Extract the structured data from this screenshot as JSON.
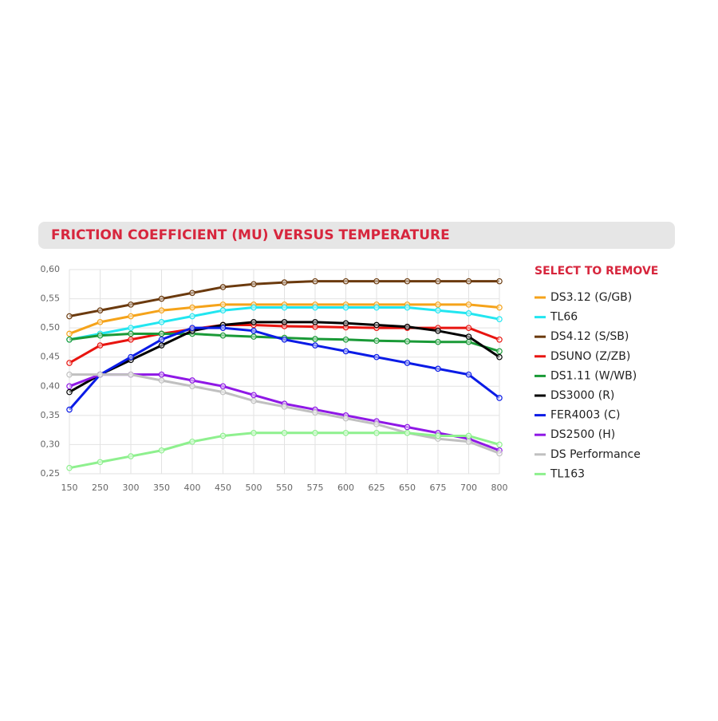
{
  "chart_data": {
    "type": "line",
    "title": "FRICTION COEFFICIENT (MU) VERSUS TEMPERATURE",
    "legend_title": "SELECT TO REMOVE",
    "legend": "right",
    "grid": true,
    "categories": [
      "150",
      "250",
      "300",
      "350",
      "400",
      "450",
      "500",
      "550",
      "575",
      "600",
      "625",
      "650",
      "675",
      "700",
      "800"
    ],
    "ylim": [
      0.25,
      0.6
    ],
    "yticks": [
      {
        "value": 0.25,
        "label": "0,25"
      },
      {
        "value": 0.3,
        "label": "0,30"
      },
      {
        "value": 0.35,
        "label": "0,35"
      },
      {
        "value": 0.4,
        "label": "0,40"
      },
      {
        "value": 0.45,
        "label": "0,45"
      },
      {
        "value": 0.5,
        "label": "0,50"
      },
      {
        "value": 0.55,
        "label": "0,55"
      },
      {
        "value": 0.6,
        "label": "0,60"
      }
    ],
    "series": [
      {
        "name": "DS3.12 (G/GB)",
        "color": "#f5a31a",
        "values": [
          0.49,
          0.51,
          0.52,
          0.53,
          0.535,
          0.54,
          0.54,
          0.54,
          0.54,
          0.54,
          0.54,
          0.54,
          0.54,
          0.54,
          0.535
        ]
      },
      {
        "name": "TL66",
        "color": "#22e6f0",
        "values": [
          0.48,
          0.49,
          0.5,
          0.51,
          0.52,
          0.53,
          0.535,
          0.535,
          0.535,
          0.535,
          0.535,
          0.535,
          0.53,
          0.525,
          0.515
        ]
      },
      {
        "name": "DS4.12 (S/SB)",
        "color": "#6b3a0e",
        "values": [
          0.52,
          0.53,
          0.54,
          0.55,
          0.56,
          0.57,
          0.575,
          0.578,
          0.58,
          0.58,
          0.58,
          0.58,
          0.58,
          0.58,
          0.58
        ]
      },
      {
        "name": "DSUNO (Z/ZB)",
        "color": "#e8140f",
        "values": [
          0.44,
          0.47,
          0.48,
          0.49,
          0.498,
          0.505,
          0.505,
          0.503,
          0.502,
          0.501,
          0.5,
          0.5,
          0.5,
          0.5,
          0.48
        ]
      },
      {
        "name": "DS1.11 (W/WB)",
        "color": "#1a9a37",
        "values": [
          0.48,
          0.487,
          0.49,
          0.49,
          0.49,
          0.487,
          0.485,
          0.483,
          0.481,
          0.48,
          0.478,
          0.477,
          0.476,
          0.476,
          0.46
        ]
      },
      {
        "name": "DS3000 (R)",
        "color": "#000000",
        "values": [
          0.39,
          0.42,
          0.445,
          0.47,
          0.495,
          0.505,
          0.51,
          0.51,
          0.51,
          0.508,
          0.505,
          0.502,
          0.495,
          0.485,
          0.45
        ]
      },
      {
        "name": "FER4003 (C)",
        "color": "#0a1be6",
        "values": [
          0.36,
          0.42,
          0.45,
          0.48,
          0.5,
          0.5,
          0.495,
          0.48,
          0.47,
          0.46,
          0.45,
          0.44,
          0.43,
          0.42,
          0.38
        ]
      },
      {
        "name": "DS2500 (H)",
        "color": "#8f18e6",
        "values": [
          0.4,
          0.42,
          0.42,
          0.42,
          0.41,
          0.4,
          0.385,
          0.37,
          0.36,
          0.35,
          0.34,
          0.33,
          0.32,
          0.31,
          0.29
        ]
      },
      {
        "name": "DS Performance",
        "color": "#c0c0c0",
        "values": [
          0.42,
          0.42,
          0.42,
          0.41,
          0.4,
          0.39,
          0.375,
          0.365,
          0.355,
          0.345,
          0.335,
          0.32,
          0.31,
          0.305,
          0.285
        ]
      },
      {
        "name": "TL163",
        "color": "#8ef08e",
        "values": [
          0.26,
          0.27,
          0.28,
          0.29,
          0.305,
          0.315,
          0.32,
          0.32,
          0.32,
          0.32,
          0.32,
          0.32,
          0.315,
          0.315,
          0.3
        ]
      }
    ]
  }
}
